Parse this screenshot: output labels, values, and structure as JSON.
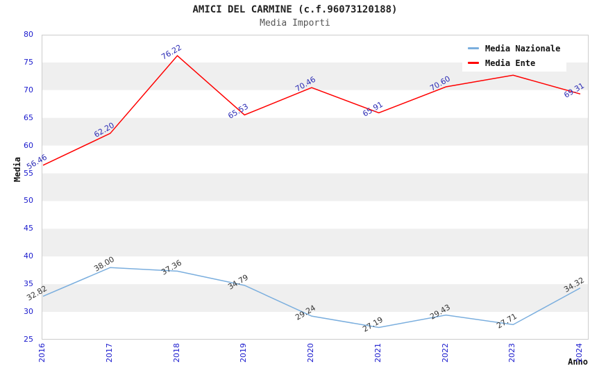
{
  "header": {
    "title": "AMICI DEL CARMINE (c.f.96073120188)",
    "subtitle": "Media Importi"
  },
  "chart_data": {
    "type": "line",
    "x": [
      "2016",
      "2017",
      "2018",
      "2019",
      "2020",
      "2021",
      "2022",
      "2023",
      "2024"
    ],
    "xlabel": "Anno",
    "ylabel": "Media",
    "ylim": [
      25,
      80
    ],
    "ytick_step": 5,
    "grid": "alternating-horizontal-bands",
    "legend_position": "top-right-inside",
    "series": [
      {
        "name": "Media Nazionale",
        "color": "#7aaede",
        "label_color": "#333333",
        "values": [
          32.82,
          38.0,
          37.36,
          34.79,
          29.24,
          27.19,
          29.43,
          27.71,
          34.32
        ],
        "point_labels": [
          "32.82",
          "38.00",
          "37.36",
          "34.79",
          "29.24",
          "27.19",
          "29.43",
          "27.71",
          "34.32"
        ]
      },
      {
        "name": "Media Ente",
        "color": "#ff0000",
        "label_color": "#2a2ab4",
        "values": [
          56.46,
          62.2,
          76.22,
          65.53,
          70.46,
          65.91,
          70.6,
          72.7,
          69.31
        ],
        "point_labels": [
          "56.46",
          "62.20",
          "76.22",
          "65.53",
          "70.46",
          "65.91",
          "70.60",
          "",
          "69.31"
        ]
      }
    ]
  },
  "colors": {
    "band_gray": "#efefef",
    "plot_border": "#cccccc",
    "axis_tick_text": "#1a1acd",
    "title_text": "#222222",
    "subtitle_text": "#555555",
    "axis_title_text": "#111111",
    "legend_bg": "#ffffff"
  }
}
